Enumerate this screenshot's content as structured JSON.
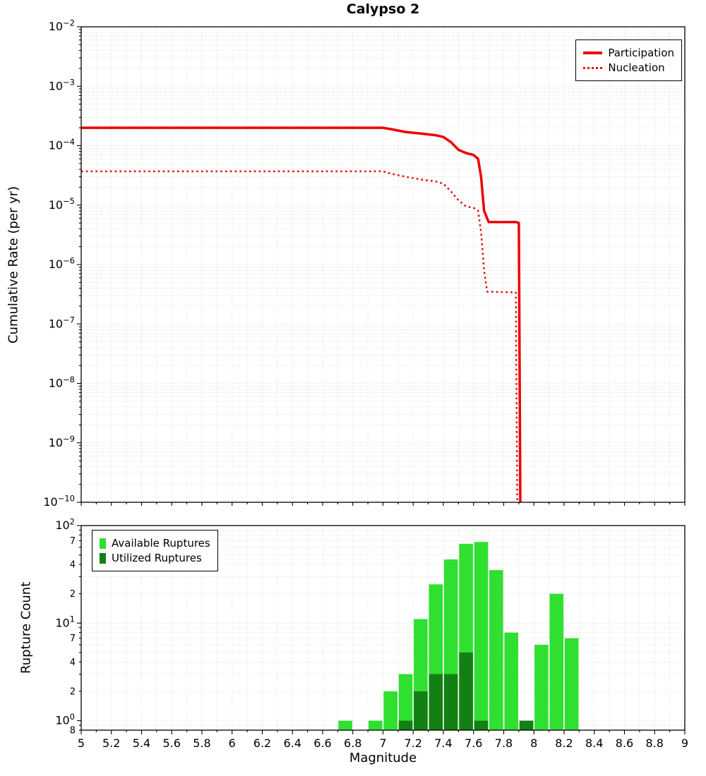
{
  "title": "Calypso 2",
  "chart_data": [
    {
      "id": "cumulative-rate",
      "type": "line",
      "title": "Calypso 2",
      "ylabel": "Cumulative Rate (per yr)",
      "xlim": [
        5,
        9
      ],
      "ylim": [
        1e-10,
        0.01
      ],
      "y_scale": "log",
      "grid": true,
      "y_tick_exponents": [
        -2,
        -3,
        -4,
        -5,
        -6,
        -7,
        -8,
        -9,
        -10
      ],
      "legend_position": "top-right",
      "series": [
        {
          "name": "Participation",
          "color": "#ee0000",
          "style": "solid",
          "line_width": 3.5,
          "points": [
            [
              5.0,
              0.0002
            ],
            [
              6.0,
              0.0002
            ],
            [
              7.0,
              0.0002
            ],
            [
              7.05,
              0.00019
            ],
            [
              7.15,
              0.00017
            ],
            [
              7.25,
              0.00016
            ],
            [
              7.35,
              0.00015
            ],
            [
              7.4,
              0.00014
            ],
            [
              7.45,
              0.000115
            ],
            [
              7.5,
              8.5e-05
            ],
            [
              7.55,
              7.5e-05
            ],
            [
              7.6,
              7e-05
            ],
            [
              7.63,
              6e-05
            ],
            [
              7.65,
              3e-05
            ],
            [
              7.67,
              8e-06
            ],
            [
              7.7,
              5.2e-06
            ],
            [
              7.88,
              5.2e-06
            ],
            [
              7.9,
              5e-06
            ],
            [
              7.91,
              1e-10
            ]
          ]
        },
        {
          "name": "Nucleation",
          "color": "#ee0000",
          "style": "dotted",
          "line_width": 2.5,
          "points": [
            [
              5.0,
              3.7e-05
            ],
            [
              6.0,
              3.7e-05
            ],
            [
              7.0,
              3.7e-05
            ],
            [
              7.05,
              3.4e-05
            ],
            [
              7.15,
              3e-05
            ],
            [
              7.25,
              2.7e-05
            ],
            [
              7.35,
              2.5e-05
            ],
            [
              7.4,
              2.3e-05
            ],
            [
              7.45,
              1.7e-05
            ],
            [
              7.5,
              1.2e-05
            ],
            [
              7.55,
              9.5e-06
            ],
            [
              7.6,
              9e-06
            ],
            [
              7.63,
              8e-06
            ],
            [
              7.65,
              3.5e-06
            ],
            [
              7.67,
              8e-07
            ],
            [
              7.69,
              3.5e-07
            ],
            [
              7.88,
              3.4e-07
            ],
            [
              7.89,
              1e-10
            ]
          ]
        }
      ]
    },
    {
      "id": "rupture-count",
      "type": "bar",
      "ylabel": "Rupture Count",
      "xlabel": "Magnitude",
      "xlim": [
        5,
        9
      ],
      "ylim": [
        0.8,
        100
      ],
      "y_scale": "log",
      "grid": true,
      "bin_width": 0.1,
      "legend_position": "top-left",
      "x_ticks": [
        5,
        5.2,
        5.4,
        5.6,
        5.8,
        6,
        6.2,
        6.4,
        6.6,
        6.8,
        7,
        7.2,
        7.4,
        7.6,
        7.8,
        8,
        8.2,
        8.4,
        8.6,
        8.8,
        9
      ],
      "y_ticks": [
        {
          "value": 100,
          "exp": 2
        },
        {
          "value": 70,
          "text": "7"
        },
        {
          "value": 40,
          "text": "4"
        },
        {
          "value": 20,
          "text": "2"
        },
        {
          "value": 10,
          "exp": 1
        },
        {
          "value": 7,
          "text": "7"
        },
        {
          "value": 4,
          "text": "4"
        },
        {
          "value": 2,
          "text": "2"
        },
        {
          "value": 1,
          "exp": 0
        },
        {
          "value": 0.8,
          "text": "8"
        }
      ],
      "series": [
        {
          "name": "Available Ruptures",
          "color": "#30e030",
          "bars": [
            [
              6.75,
              1
            ],
            [
              6.95,
              1
            ],
            [
              7.05,
              2
            ],
            [
              7.15,
              3
            ],
            [
              7.25,
              11
            ],
            [
              7.35,
              25
            ],
            [
              7.45,
              45
            ],
            [
              7.55,
              65
            ],
            [
              7.65,
              68
            ],
            [
              7.75,
              35
            ],
            [
              7.85,
              8
            ],
            [
              7.95,
              1
            ],
            [
              8.05,
              6
            ],
            [
              8.15,
              20
            ],
            [
              8.25,
              7
            ]
          ]
        },
        {
          "name": "Utilized Ruptures",
          "color": "#128012",
          "bars": [
            [
              7.15,
              1
            ],
            [
              7.25,
              2
            ],
            [
              7.35,
              3
            ],
            [
              7.45,
              3
            ],
            [
              7.55,
              5
            ],
            [
              7.65,
              1
            ],
            [
              7.95,
              1
            ]
          ]
        }
      ]
    }
  ]
}
